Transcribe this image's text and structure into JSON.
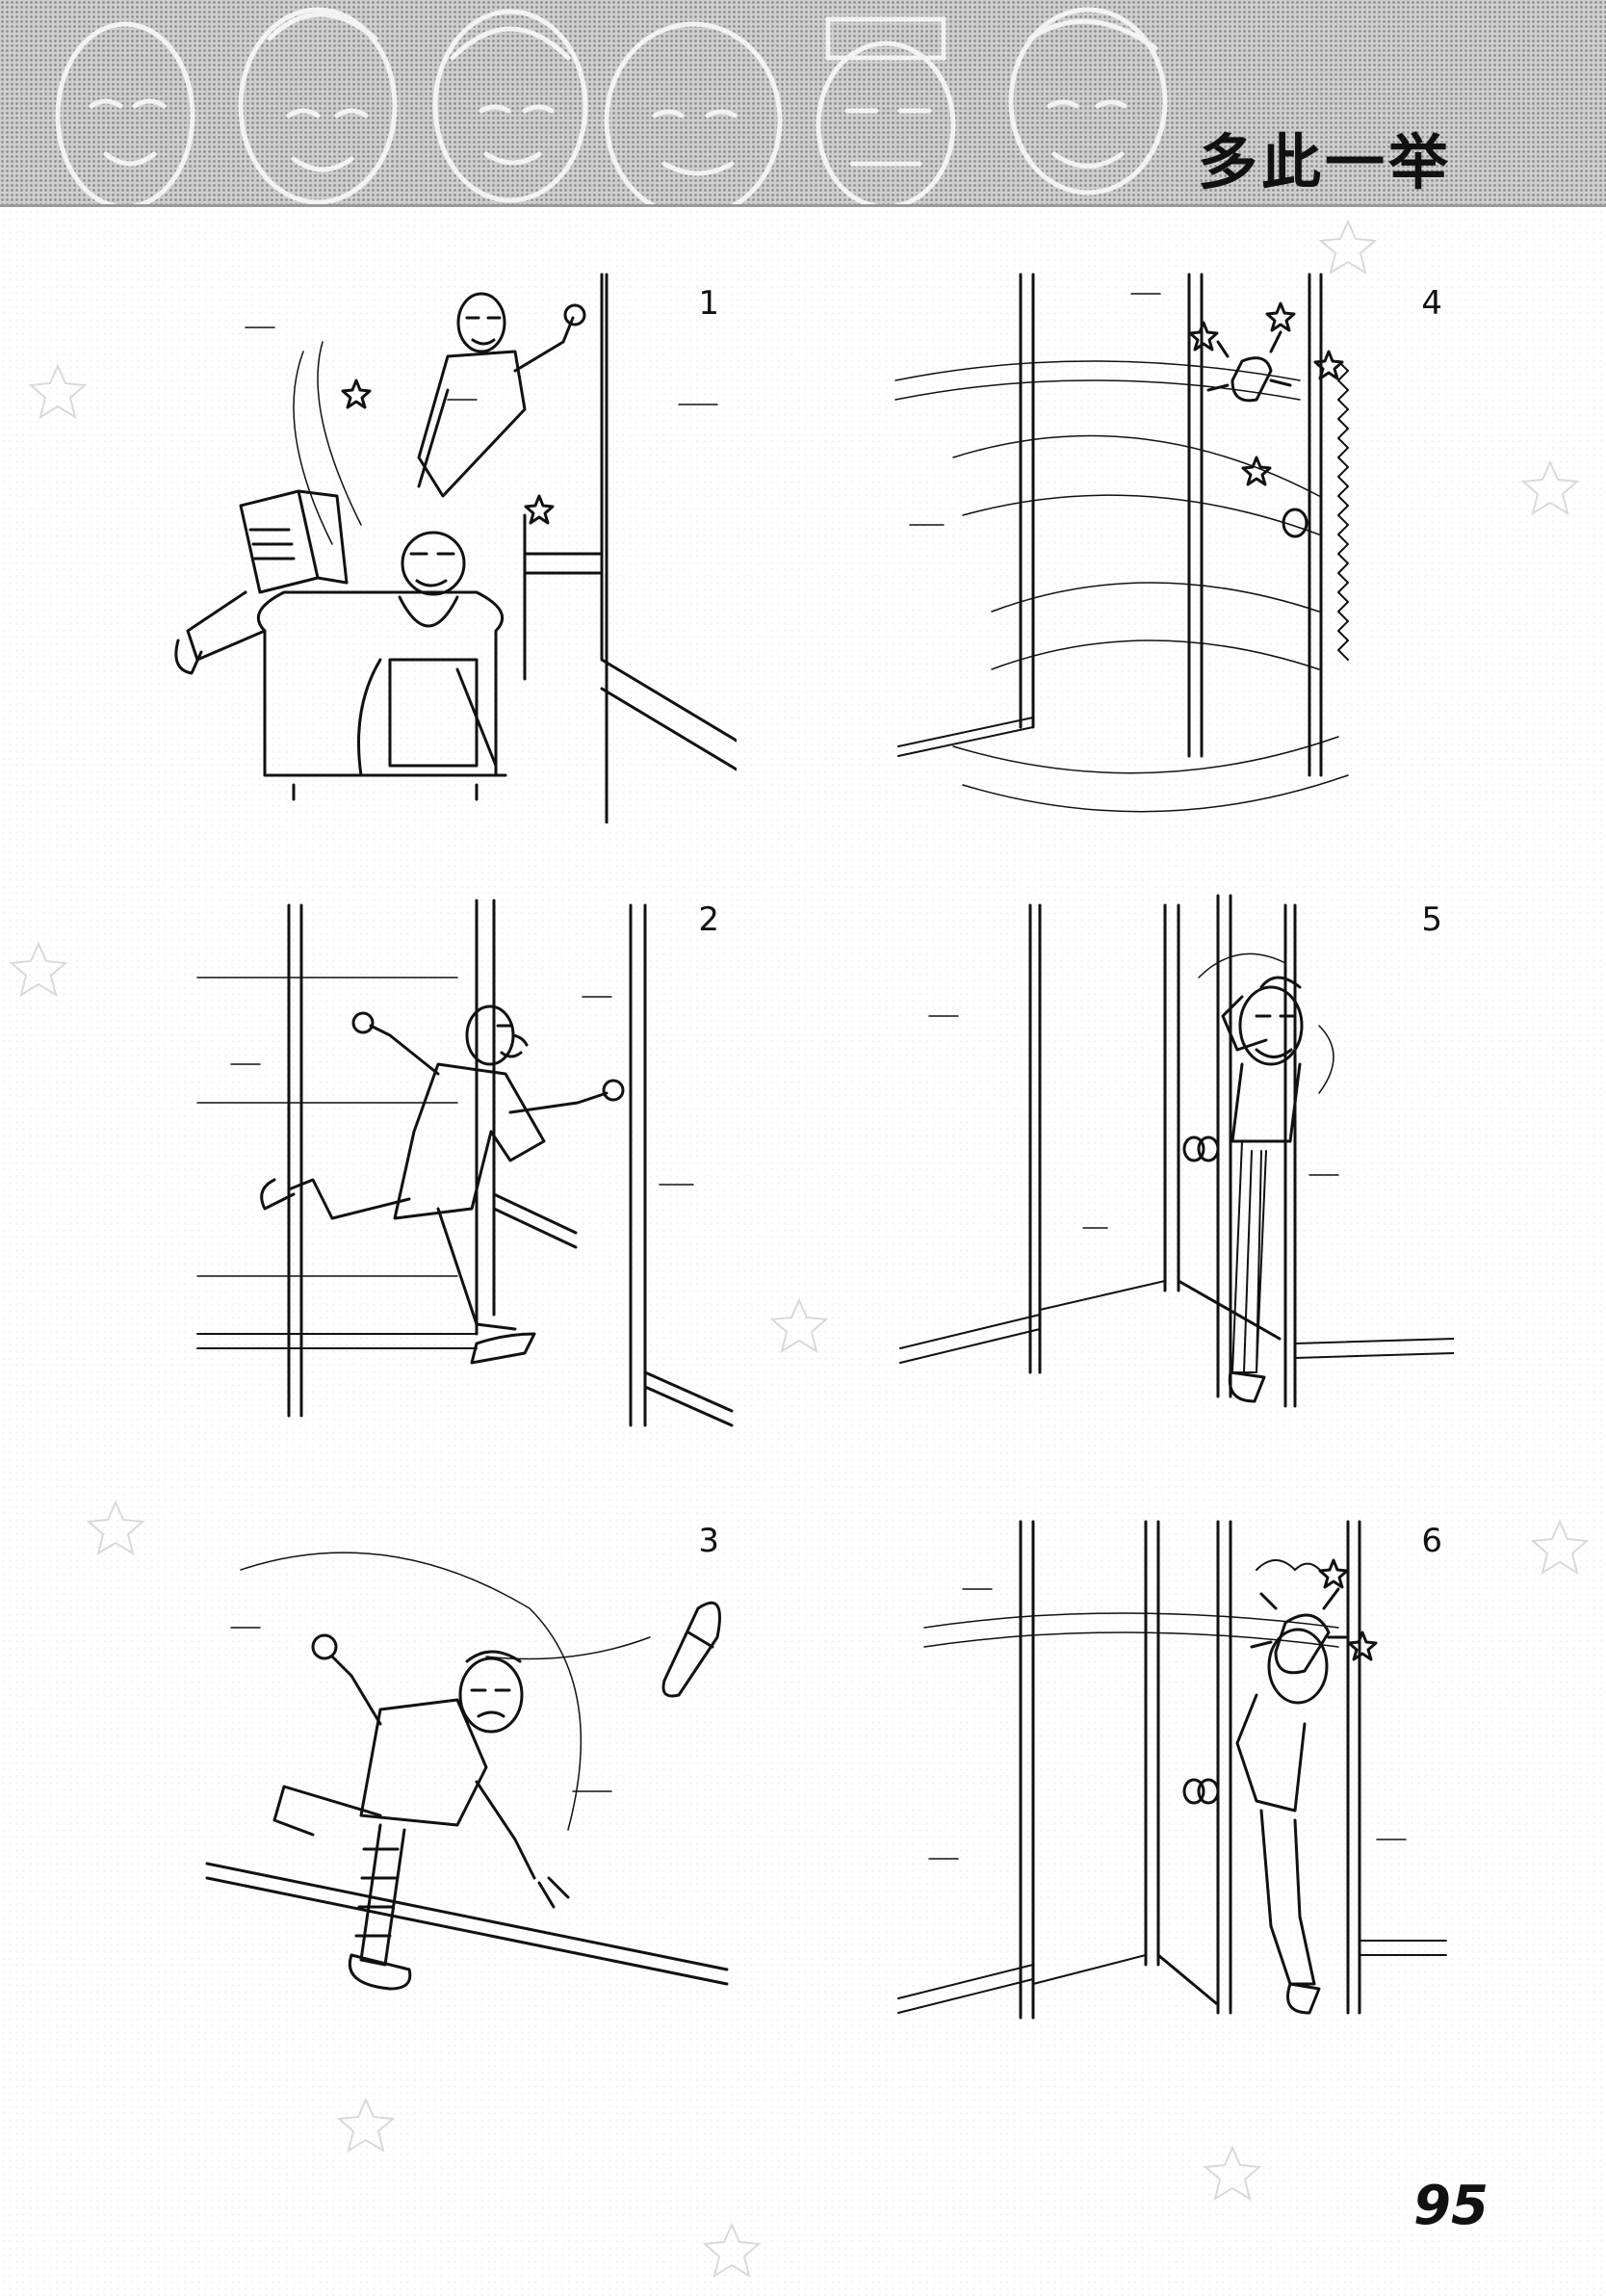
{
  "header": {
    "title": "多此一举"
  },
  "panels": [
    {
      "number": "1"
    },
    {
      "number": "2"
    },
    {
      "number": "3"
    },
    {
      "number": "4"
    },
    {
      "number": "5"
    },
    {
      "number": "6"
    }
  ],
  "footer": {
    "page_number": "95"
  },
  "colors": {
    "ink": "#111111",
    "header_gray": "#cfcfcf"
  }
}
